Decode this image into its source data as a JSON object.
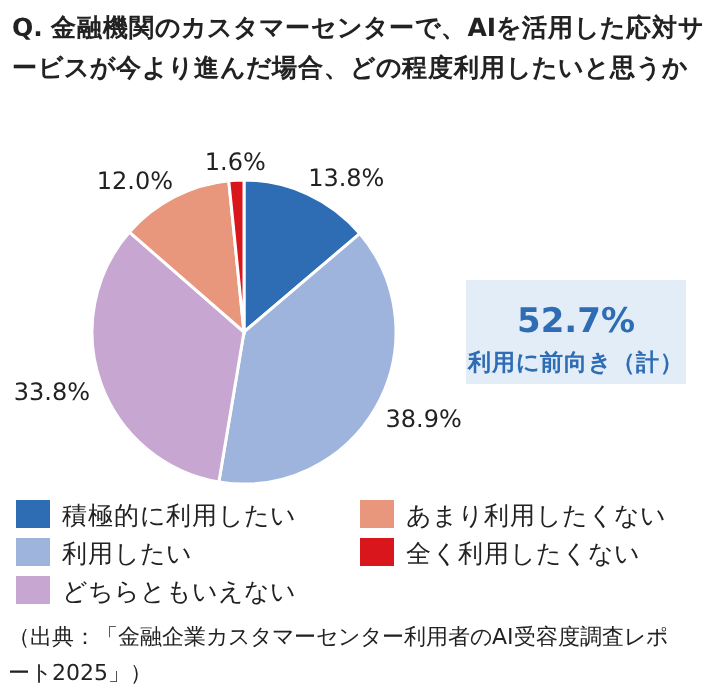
{
  "chart_data": {
    "type": "pie",
    "title": "Q. 金融機関のカスタマーセンターで、AIを活用した応対サービスが今より進んだ場合、どの程度利用したいと思うか",
    "categories": [
      "積極的に利用したい",
      "利用したい",
      "どちらともいえない",
      "あまり利用したくない",
      "全く利用したくない"
    ],
    "values": [
      13.8,
      38.9,
      33.8,
      12.0,
      1.6
    ],
    "value_labels": [
      "13.8%",
      "38.9%",
      "33.8%",
      "12.0%",
      "1.6%"
    ],
    "colors": [
      "#2e6db4",
      "#9fb4dd",
      "#c7a6d2",
      "#e9977c",
      "#d9161c"
    ],
    "legend": "bottom",
    "annotations": [
      "52.7%",
      "利用に前向き（計）",
      "（出典：「金融企業カスタマーセンター利用者のAI受容度調査レポート2025」）"
    ]
  }
}
